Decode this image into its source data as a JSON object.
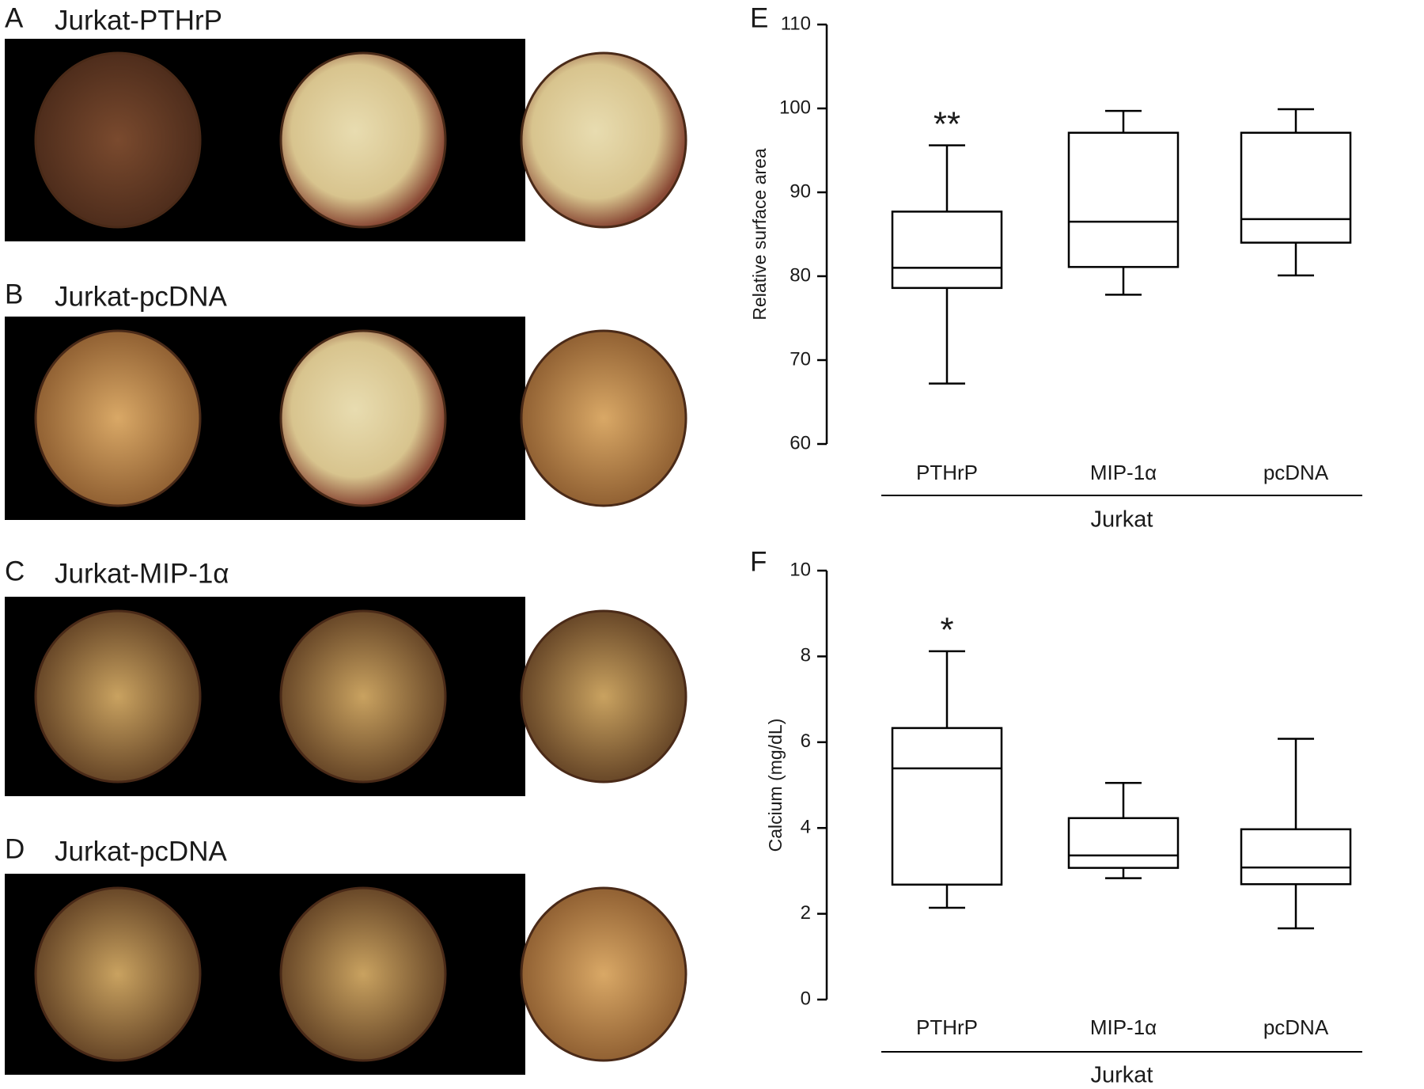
{
  "panels": [
    {
      "letter": "A",
      "title": "Jurkat-PTHrP"
    },
    {
      "letter": "B",
      "title": "Jurkat-pcDNA"
    },
    {
      "letter": "C",
      "title": "Jurkat-MIP-1α"
    },
    {
      "letter": "D",
      "title": "Jurkat-pcDNA"
    }
  ],
  "chart_data": [
    {
      "type": "box",
      "letter": "E",
      "y_label": "Relative surface area",
      "categories": [
        "PTHrP",
        "MIP-1α",
        "pcDNA"
      ],
      "group_label": "Jurkat",
      "whisker_low": [
        67.2,
        77.8,
        80.1
      ],
      "q1": [
        78.6,
        81.1,
        84
      ],
      "median": [
        81,
        86.5,
        86.8
      ],
      "q3": [
        87.7,
        97.1,
        97.1
      ],
      "whisker_high": [
        95.6,
        99.7,
        99.9
      ],
      "annotations": [
        "**",
        null,
        null
      ],
      "color": "#000000",
      "ylim": [
        60,
        110
      ],
      "yticks": [
        60,
        70,
        80,
        90,
        100,
        110
      ]
    },
    {
      "type": "box",
      "letter": "F",
      "y_label": "Calcium (mg/dL)",
      "categories": [
        "PTHrP",
        "MIP-1α",
        "pcDNA"
      ],
      "group_label": "Jurkat",
      "whisker_low": [
        2.14,
        2.83,
        1.66
      ],
      "q1": [
        2.68,
        3.07,
        2.69
      ],
      "median": [
        5.39,
        3.36,
        3.08
      ],
      "q3": [
        6.33,
        4.23,
        3.97
      ],
      "whisker_high": [
        8.12,
        5.05,
        6.08
      ],
      "annotations": [
        "*",
        null,
        null
      ],
      "color": "#000000",
      "ylim": [
        0,
        10
      ],
      "yticks": [
        0,
        2,
        4,
        6,
        8,
        10
      ]
    }
  ]
}
